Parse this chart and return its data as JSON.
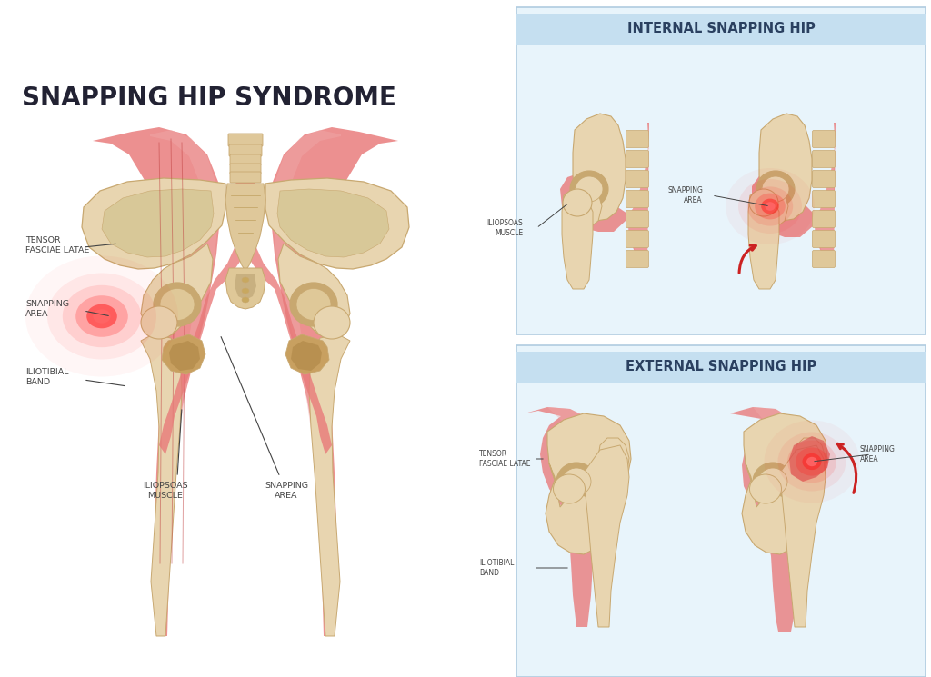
{
  "title": "SNAPPING HIP SYNDROME",
  "internal_title": "INTERNAL SNAPPING HIP",
  "external_title": "EXTERNAL SNAPPING HIP",
  "bg_color": "#ffffff",
  "panel_bg_light": "#e8f4fb",
  "panel_header_bg": "#c5dff0",
  "bone_color": "#e8d5b0",
  "bone_edge": "#c8a870",
  "bone_dark": "#c8a860",
  "muscle_color": "#e87878",
  "muscle_light": "#f0aaaa",
  "muscle_mid": "#d86060",
  "snapping_red": "#cc2222",
  "label_color": "#444444",
  "title_color": "#222233",
  "header_text_color": "#2a4060"
}
